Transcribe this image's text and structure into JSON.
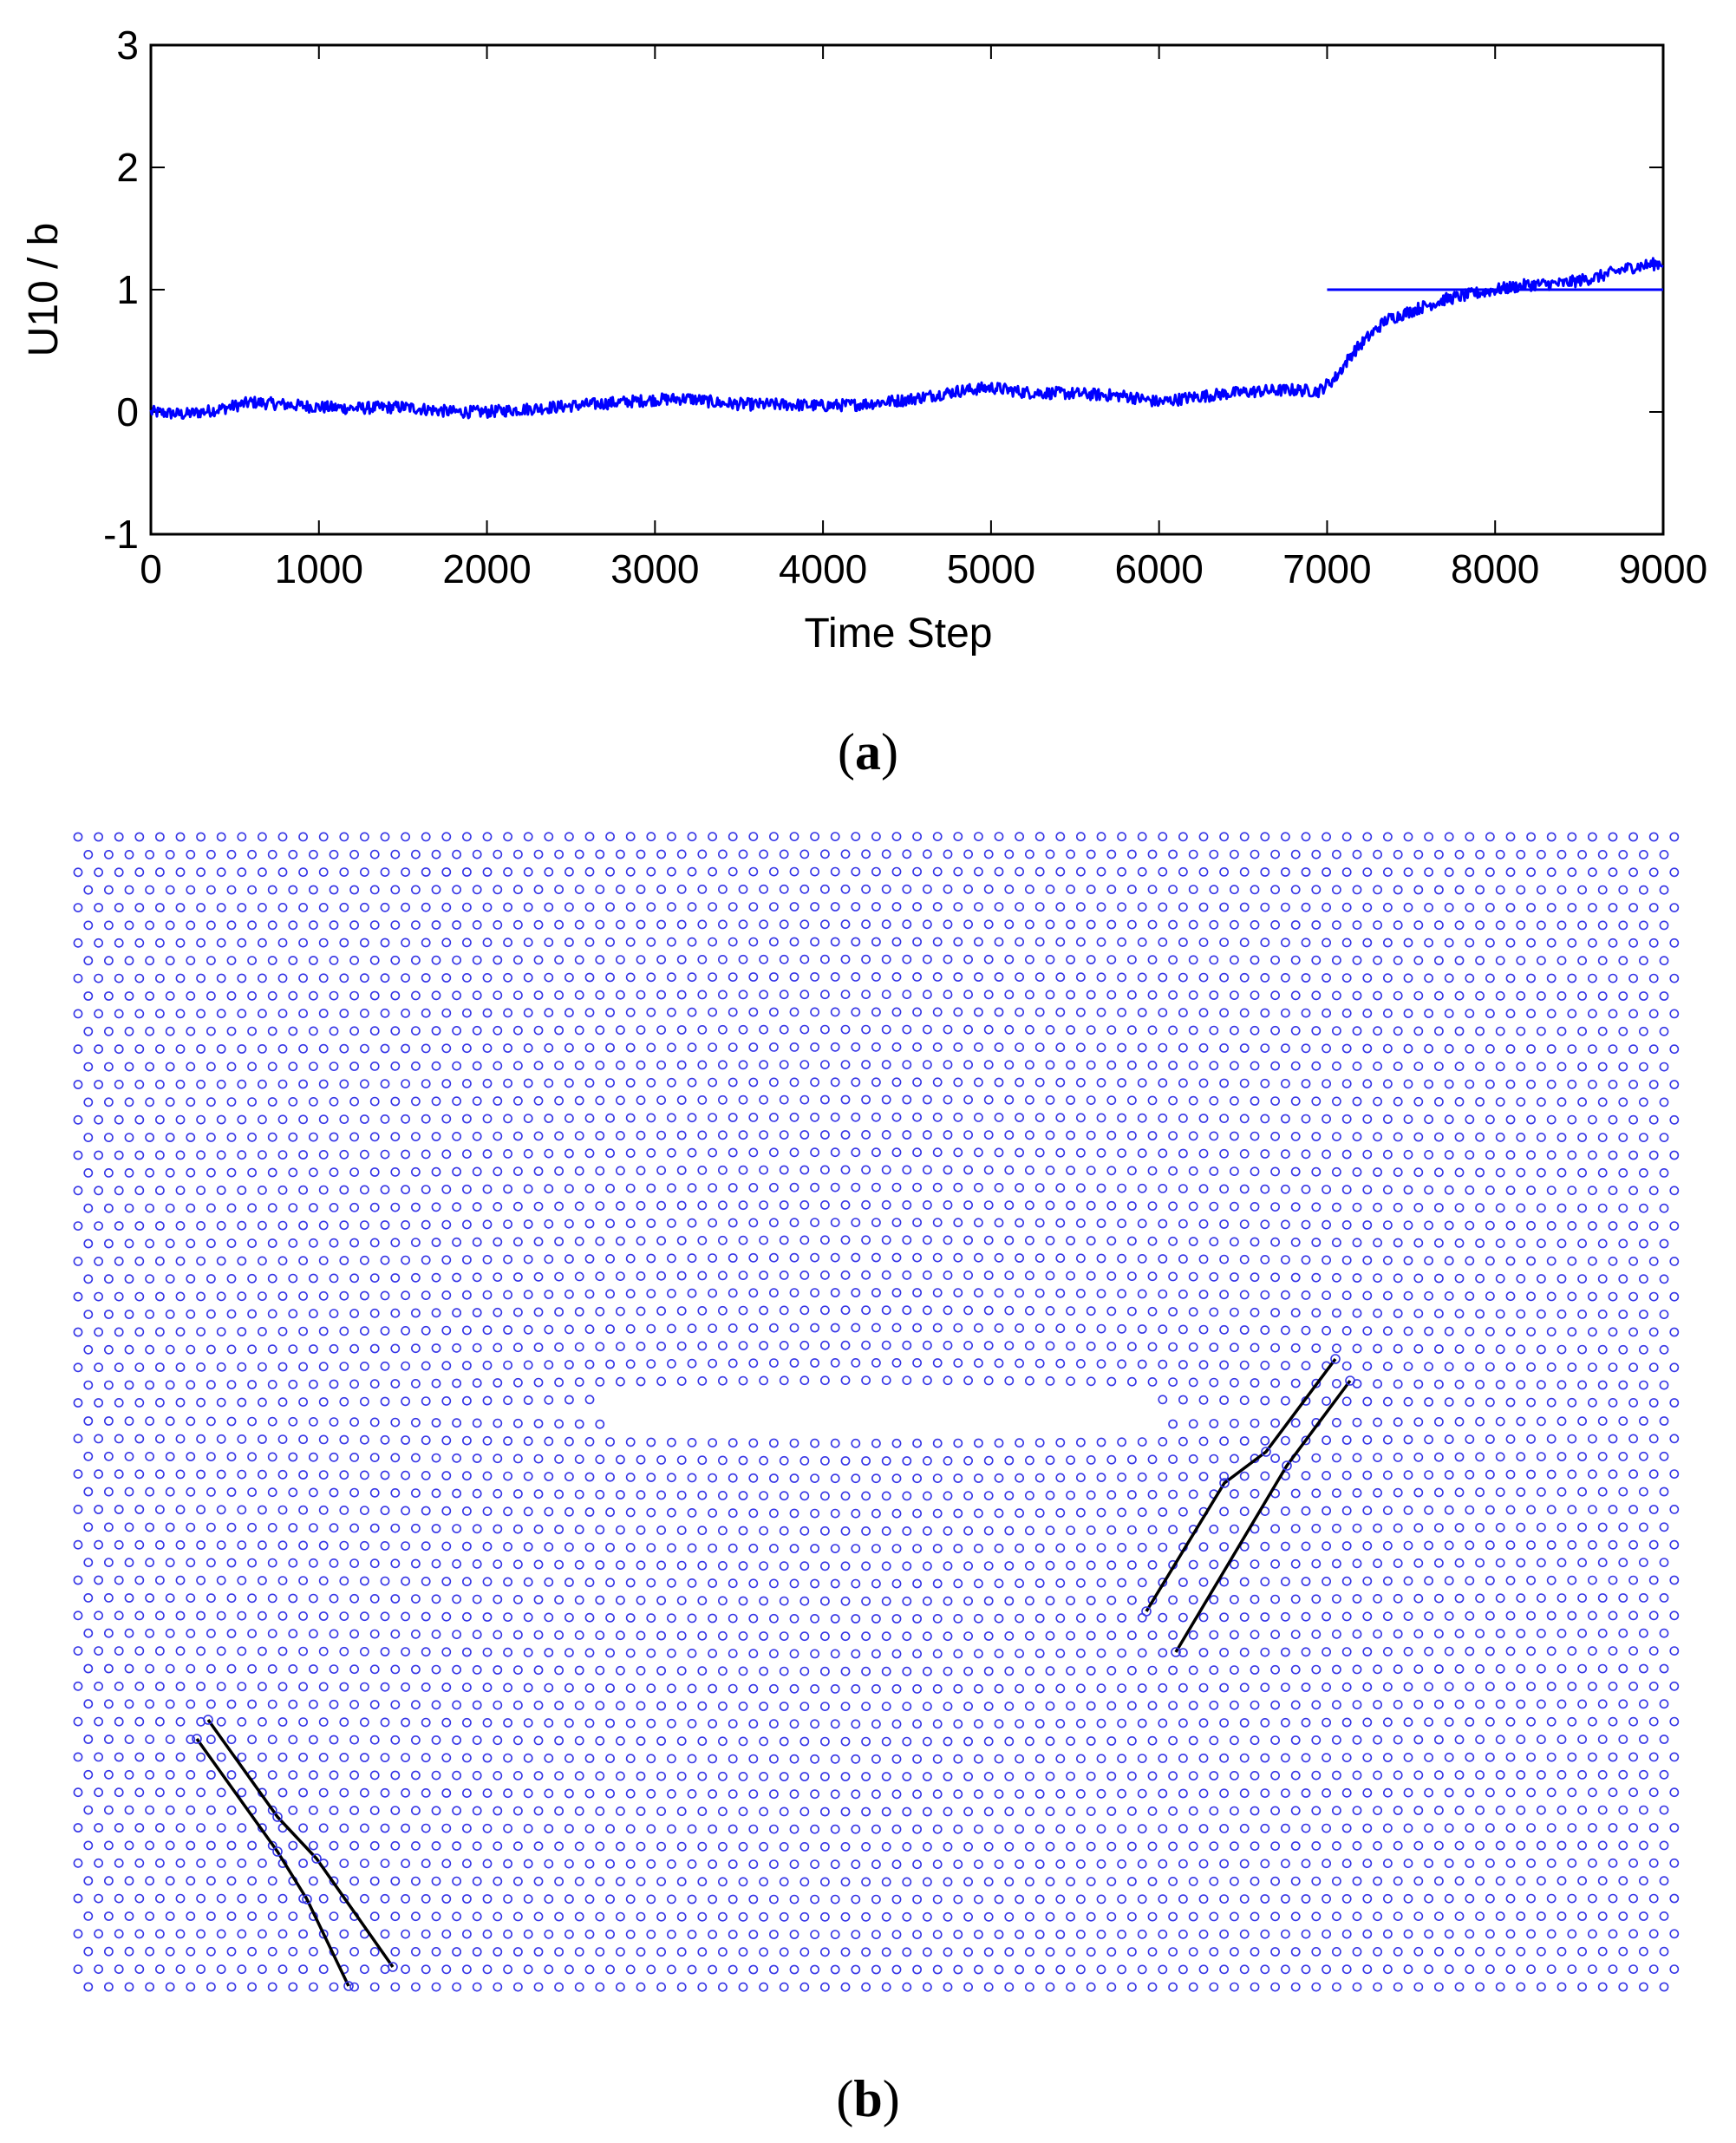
{
  "colors": {
    "series": "#0000ff",
    "lattice": "#3535e6",
    "dislocation": "#000000",
    "axis": "#000000"
  },
  "chart_data": [
    {
      "type": "line",
      "title": "",
      "xlabel": "Time Step",
      "ylabel": "U10 / b",
      "xlim": [
        0,
        9000
      ],
      "ylim": [
        -1,
        3
      ],
      "x_ticks": [
        0,
        1000,
        2000,
        3000,
        4000,
        5000,
        6000,
        7000,
        8000,
        9000
      ],
      "x_tick_labels": [
        "0",
        "1000",
        "2000",
        "3000",
        "4000",
        "5000",
        "6000",
        "7000",
        "8000",
        "9000"
      ],
      "y_ticks": [
        -1,
        0,
        1,
        2,
        3
      ],
      "y_tick_labels": [
        "-1",
        "0",
        "1",
        "2",
        "3"
      ],
      "grid": false,
      "series": [
        {
          "x": [
            0,
            200,
            400,
            600,
            800,
            1000,
            1200,
            1500,
            1800,
            2000,
            2200,
            2500,
            2800,
            3000,
            3200,
            3400,
            3600,
            3800,
            4000,
            4200,
            4500,
            4800,
            5000,
            5200,
            5500,
            5800,
            6000,
            6200,
            6400,
            6600,
            6800,
            6950,
            7050,
            7150,
            7250,
            7350,
            7450,
            7550,
            7700,
            7850,
            8000,
            8200,
            8400,
            8600,
            8800,
            9000
          ],
          "values": [
            0.0,
            -0.02,
            0.02,
            0.08,
            0.06,
            0.04,
            0.03,
            0.04,
            0.0,
            0.0,
            0.02,
            0.05,
            0.08,
            0.1,
            0.11,
            0.07,
            0.06,
            0.06,
            0.05,
            0.06,
            0.1,
            0.17,
            0.2,
            0.16,
            0.15,
            0.13,
            0.08,
            0.12,
            0.15,
            0.17,
            0.18,
            0.17,
            0.28,
            0.48,
            0.62,
            0.75,
            0.8,
            0.85,
            0.92,
            0.96,
            1.0,
            1.04,
            1.05,
            1.1,
            1.18,
            1.22
          ],
          "noise": 0.05
        },
        {
          "x": [
            7000,
            9000
          ],
          "values": [
            1,
            1
          ]
        }
      ]
    },
    {
      "type": "scatter",
      "title": "",
      "description_lattice": "hexagonal atomic lattice with a central crack and two dislocation pairs",
      "marker": "open-circle"
    }
  ],
  "labels": {
    "panel_a": {
      "open": "(",
      "letter": "a",
      "close": ")"
    },
    "panel_b": {
      "open": "(",
      "letter": "b",
      "close": ")"
    }
  }
}
